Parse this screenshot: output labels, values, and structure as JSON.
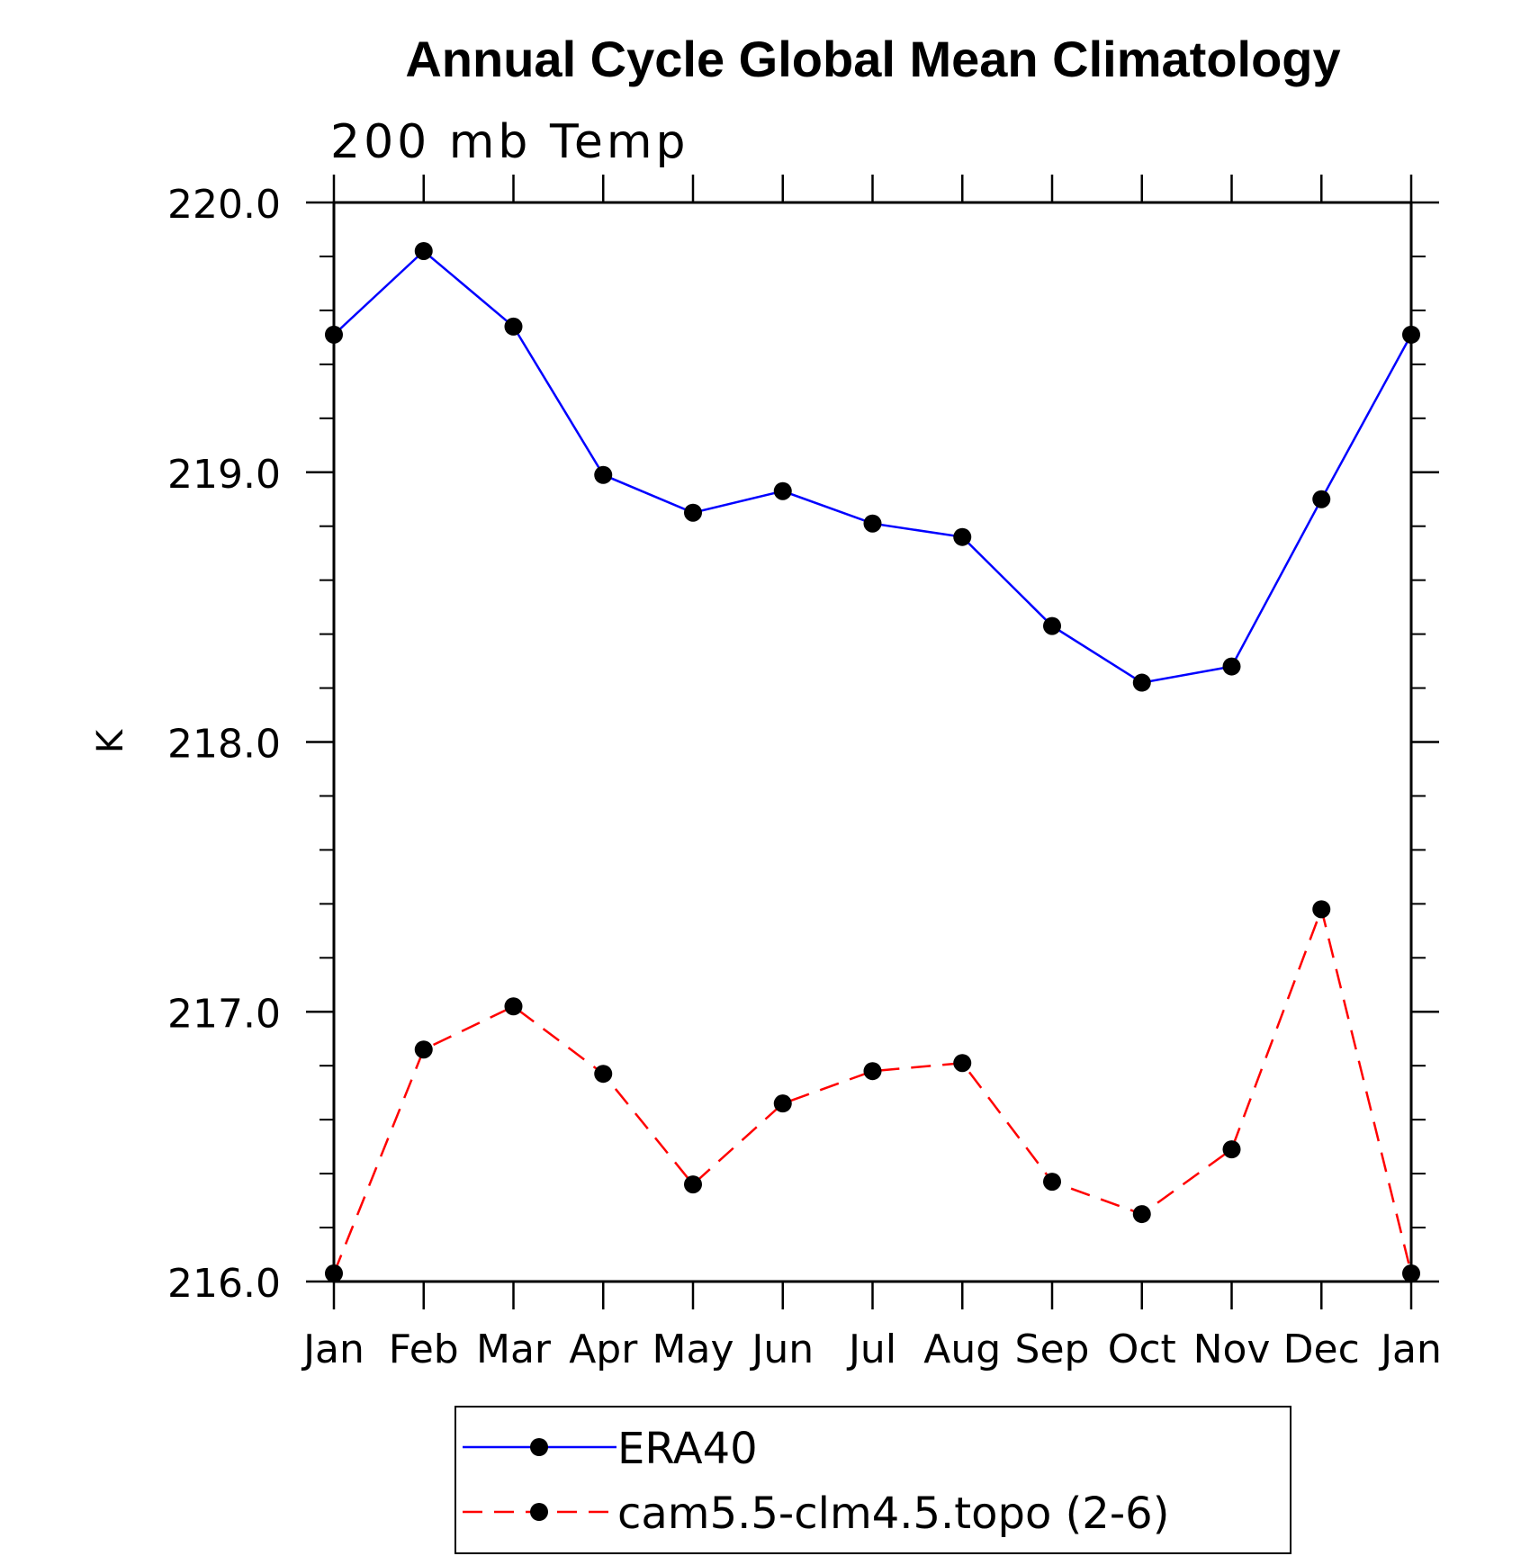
{
  "chart_data": {
    "type": "line",
    "title": "Annual Cycle Global Mean Climatology",
    "subtitle": "200 mb Temp",
    "xlabel": "",
    "ylabel": "K",
    "categories": [
      "Jan",
      "Feb",
      "Mar",
      "Apr",
      "May",
      "Jun",
      "Jul",
      "Aug",
      "Sep",
      "Oct",
      "Nov",
      "Dec",
      "Jan"
    ],
    "ylim": [
      216.0,
      220.0
    ],
    "yticks": [
      216.0,
      217.0,
      218.0,
      219.0,
      220.0
    ],
    "ytick_labels": [
      "216.0",
      "217.0",
      "218.0",
      "219.0",
      "220.0"
    ],
    "yminor_step": 0.2,
    "legend_position": "bottom",
    "series": [
      {
        "name": "ERA40",
        "color": "#0000ff",
        "dash": "solid",
        "marker": "circle",
        "values": [
          219.51,
          219.82,
          219.54,
          218.99,
          218.85,
          218.93,
          218.81,
          218.76,
          218.43,
          218.22,
          218.28,
          218.9,
          219.51
        ]
      },
      {
        "name": "cam5.5-clm4.5.topo (2-6)",
        "color": "#ff0000",
        "dash": "dashed",
        "marker": "circle",
        "values": [
          216.03,
          216.86,
          217.02,
          216.77,
          216.36,
          216.66,
          216.78,
          216.81,
          216.37,
          216.25,
          216.49,
          217.38,
          216.03
        ]
      }
    ]
  }
}
